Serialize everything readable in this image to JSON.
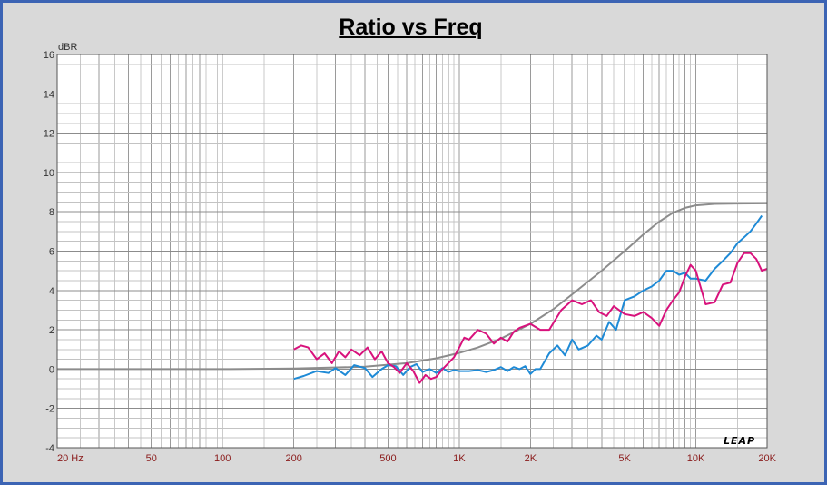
{
  "chart_data": {
    "type": "line",
    "title": "Ratio vs Freq",
    "ylabel": "dBR",
    "xlabel": "",
    "xscale": "log",
    "xlim": [
      20,
      20000
    ],
    "ylim": [
      -4,
      16
    ],
    "grid": true,
    "watermark": "LEAP",
    "yticks": [
      {
        "value": -4,
        "label": "-4"
      },
      {
        "value": -2,
        "label": "-2"
      },
      {
        "value": 0,
        "label": "0"
      },
      {
        "value": 2,
        "label": "2"
      },
      {
        "value": 4,
        "label": "4"
      },
      {
        "value": 6,
        "label": "6"
      },
      {
        "value": 8,
        "label": "8"
      },
      {
        "value": 10,
        "label": "10"
      },
      {
        "value": 12,
        "label": "12"
      },
      {
        "value": 14,
        "label": "14"
      },
      {
        "value": 16,
        "label": "16"
      }
    ],
    "xticks": [
      {
        "value": 20,
        "label": "20  Hz"
      },
      {
        "value": 50,
        "label": "50"
      },
      {
        "value": 100,
        "label": "100"
      },
      {
        "value": 200,
        "label": "200"
      },
      {
        "value": 500,
        "label": "500"
      },
      {
        "value": 1000,
        "label": "1K"
      },
      {
        "value": 2000,
        "label": "2K"
      },
      {
        "value": 5000,
        "label": "5K"
      },
      {
        "value": 10000,
        "label": "10K"
      },
      {
        "value": 20000,
        "label": "20K"
      }
    ],
    "series": [
      {
        "color": "#8c8c8c",
        "x": [
          20,
          100,
          200,
          400,
          600,
          800,
          1000,
          1200,
          1500,
          2000,
          2500,
          3000,
          4000,
          5000,
          6000,
          7000,
          8000,
          9000,
          10000,
          12000,
          15000,
          20000
        ],
        "y": [
          0.0,
          0.0,
          0.03,
          0.12,
          0.3,
          0.55,
          0.82,
          1.1,
          1.55,
          2.3,
          3.05,
          3.8,
          5.0,
          6.0,
          6.85,
          7.5,
          7.95,
          8.2,
          8.33,
          8.4,
          8.42,
          8.43
        ]
      },
      {
        "color": "#1e8ad6",
        "x": [
          200,
          220,
          250,
          280,
          300,
          330,
          360,
          400,
          430,
          470,
          500,
          540,
          580,
          620,
          660,
          700,
          750,
          800,
          850,
          900,
          950,
          1000,
          1100,
          1200,
          1300,
          1400,
          1500,
          1600,
          1700,
          1800,
          1900,
          2000,
          2100,
          2200,
          2400,
          2600,
          2800,
          3000,
          3200,
          3500,
          3800,
          4000,
          4300,
          4600,
          5000,
          5500,
          6000,
          6500,
          7000,
          7500,
          8000,
          8500,
          9000,
          9500,
          10000,
          11000,
          12000,
          13000,
          14000,
          15000,
          16000,
          17000,
          18000,
          19000
        ],
        "y": [
          -0.5,
          -0.35,
          -0.1,
          -0.2,
          0.05,
          -0.3,
          0.2,
          0.05,
          -0.4,
          0.0,
          0.2,
          0.15,
          -0.3,
          0.1,
          0.25,
          -0.15,
          0.0,
          -0.2,
          0.05,
          -0.15,
          -0.05,
          -0.1,
          -0.1,
          -0.05,
          -0.15,
          -0.05,
          0.1,
          -0.1,
          0.1,
          0.0,
          0.15,
          -0.25,
          0.0,
          0.0,
          0.8,
          1.2,
          0.7,
          1.5,
          1.0,
          1.2,
          1.7,
          1.5,
          2.4,
          2.0,
          3.5,
          3.7,
          4.0,
          4.2,
          4.5,
          5.0,
          5.0,
          4.8,
          4.9,
          4.6,
          4.6,
          4.5,
          5.1,
          5.5,
          5.9,
          6.4,
          6.7,
          7.0,
          7.4,
          7.8
        ]
      },
      {
        "color": "#d8127c",
        "x": [
          200,
          215,
          230,
          250,
          270,
          290,
          310,
          330,
          350,
          380,
          410,
          440,
          470,
          500,
          530,
          560,
          600,
          640,
          680,
          720,
          760,
          800,
          850,
          900,
          950,
          1000,
          1050,
          1100,
          1200,
          1300,
          1400,
          1500,
          1600,
          1700,
          1800,
          2000,
          2200,
          2400,
          2700,
          3000,
          3300,
          3600,
          3900,
          4200,
          4500,
          5000,
          5500,
          6000,
          6500,
          7000,
          7500,
          8000,
          8500,
          9000,
          9500,
          10000,
          11000,
          12000,
          13000,
          14000,
          15000,
          16000,
          17000,
          18000,
          19000,
          20000
        ],
        "y": [
          1.0,
          1.2,
          1.1,
          0.5,
          0.8,
          0.3,
          0.9,
          0.6,
          1.0,
          0.7,
          1.1,
          0.5,
          0.9,
          0.3,
          0.1,
          -0.2,
          0.3,
          -0.1,
          -0.7,
          -0.3,
          -0.5,
          -0.4,
          0.0,
          0.3,
          0.6,
          1.1,
          1.6,
          1.5,
          2.0,
          1.8,
          1.3,
          1.6,
          1.4,
          1.9,
          2.1,
          2.3,
          2.0,
          2.0,
          3.0,
          3.5,
          3.3,
          3.5,
          2.9,
          2.7,
          3.2,
          2.8,
          2.7,
          2.9,
          2.6,
          2.2,
          3.0,
          3.5,
          3.9,
          4.7,
          5.3,
          5.0,
          3.3,
          3.4,
          4.3,
          4.4,
          5.4,
          5.9,
          5.9,
          5.6,
          5.0,
          5.1
        ]
      }
    ]
  }
}
